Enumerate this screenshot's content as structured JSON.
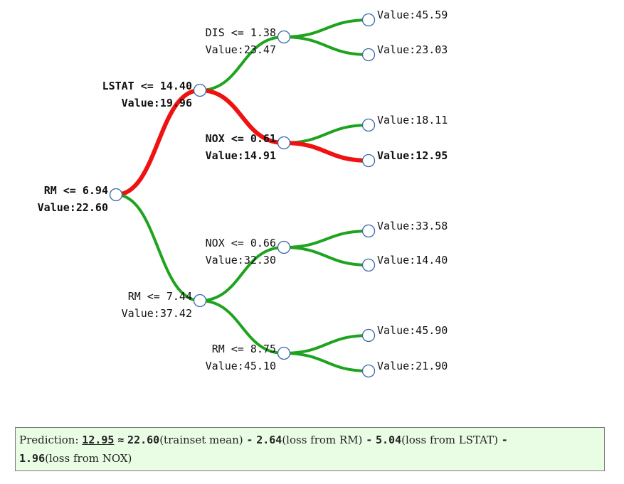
{
  "colors": {
    "edge_default": "#1ea31e",
    "edge_highlight": "#f01111",
    "node_fill": "#ffffff",
    "node_stroke": "#3a6aa8",
    "box_bg": "#e9fce4"
  },
  "tree": {
    "nodes": [
      {
        "id": "root",
        "split": "RM <= 6.94",
        "value": "Value:22.60",
        "bold": true,
        "on_path": true
      },
      {
        "id": "l",
        "split": "LSTAT <= 14.40",
        "value": "Value:19.96",
        "bold": true,
        "on_path": true
      },
      {
        "id": "r",
        "split": "RM <= 7.44",
        "value": "Value:37.42",
        "bold": false,
        "on_path": false
      },
      {
        "id": "ll",
        "split": "DIS <= 1.38",
        "value": "Value:23.47",
        "bold": false,
        "on_path": false
      },
      {
        "id": "lr",
        "split": "NOX <= 0.61",
        "value": "Value:14.91",
        "bold": true,
        "on_path": true
      },
      {
        "id": "rl",
        "split": "NOX <= 0.66",
        "value": "Value:32.30",
        "bold": false,
        "on_path": false
      },
      {
        "id": "rr",
        "split": "RM <= 8.75",
        "value": "Value:45.10",
        "bold": false,
        "on_path": false
      },
      {
        "id": "lll",
        "value": "Value:45.59",
        "bold": false,
        "on_path": false
      },
      {
        "id": "llr",
        "value": "Value:23.03",
        "bold": false,
        "on_path": false
      },
      {
        "id": "lrl",
        "value": "Value:18.11",
        "bold": false,
        "on_path": false
      },
      {
        "id": "lrr",
        "value": "Value:12.95",
        "bold": true,
        "on_path": true
      },
      {
        "id": "rll",
        "value": "Value:33.58",
        "bold": false,
        "on_path": false
      },
      {
        "id": "rlr",
        "value": "Value:14.40",
        "bold": false,
        "on_path": false
      },
      {
        "id": "rrl",
        "value": "Value:45.90",
        "bold": false,
        "on_path": false
      },
      {
        "id": "rrr",
        "value": "Value:21.90",
        "bold": false,
        "on_path": false
      }
    ],
    "edges": [
      {
        "from": "root",
        "to": "l",
        "on_path": true
      },
      {
        "from": "root",
        "to": "r",
        "on_path": false
      },
      {
        "from": "l",
        "to": "ll",
        "on_path": false
      },
      {
        "from": "l",
        "to": "lr",
        "on_path": true
      },
      {
        "from": "r",
        "to": "rl",
        "on_path": false
      },
      {
        "from": "r",
        "to": "rr",
        "on_path": false
      },
      {
        "from": "ll",
        "to": "lll",
        "on_path": false
      },
      {
        "from": "ll",
        "to": "llr",
        "on_path": false
      },
      {
        "from": "lr",
        "to": "lrl",
        "on_path": false
      },
      {
        "from": "lr",
        "to": "lrr",
        "on_path": true
      },
      {
        "from": "rl",
        "to": "rll",
        "on_path": false
      },
      {
        "from": "rl",
        "to": "rlr",
        "on_path": false
      },
      {
        "from": "rr",
        "to": "rrl",
        "on_path": false
      },
      {
        "from": "rr",
        "to": "rrr",
        "on_path": false
      }
    ]
  },
  "prediction": {
    "label": "Prediction:",
    "value": "12.95",
    "approx": "≈",
    "mean_value": "22.60",
    "mean_text": "(trainset mean)",
    "terms": [
      {
        "sign": "-",
        "amount": "2.64",
        "text": "(loss from RM)"
      },
      {
        "sign": "-",
        "amount": "5.04",
        "text": "(loss from LSTAT)"
      },
      {
        "sign": "-",
        "amount": "1.96",
        "text": "(loss from NOX)"
      }
    ]
  }
}
